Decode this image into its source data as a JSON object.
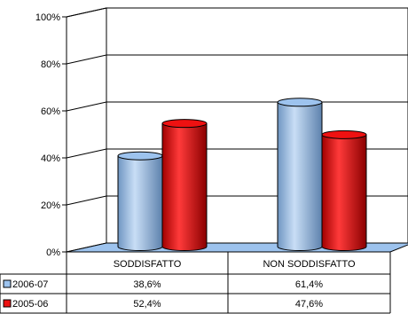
{
  "chart_data": {
    "type": "bar",
    "style": "3d-cylinder",
    "categories": [
      "SODDISFATTO",
      "NON SODDISFATTO"
    ],
    "series": [
      {
        "name": "2006-07",
        "values": [
          38.6,
          61.4
        ],
        "labels": [
          "38,6%",
          "61,4%"
        ],
        "color": "#9dc3ee"
      },
      {
        "name": "2005-06",
        "values": [
          52.4,
          47.6
        ],
        "labels": [
          "52,4%",
          "47,6%"
        ],
        "color": "#ee1111"
      }
    ],
    "ylim": [
      0,
      100
    ],
    "yticks": [
      "0%",
      "20%",
      "40%",
      "60%",
      "80%",
      "100%"
    ],
    "grid": true,
    "legend": "data-table",
    "floor_color": "#9dc3ee"
  }
}
